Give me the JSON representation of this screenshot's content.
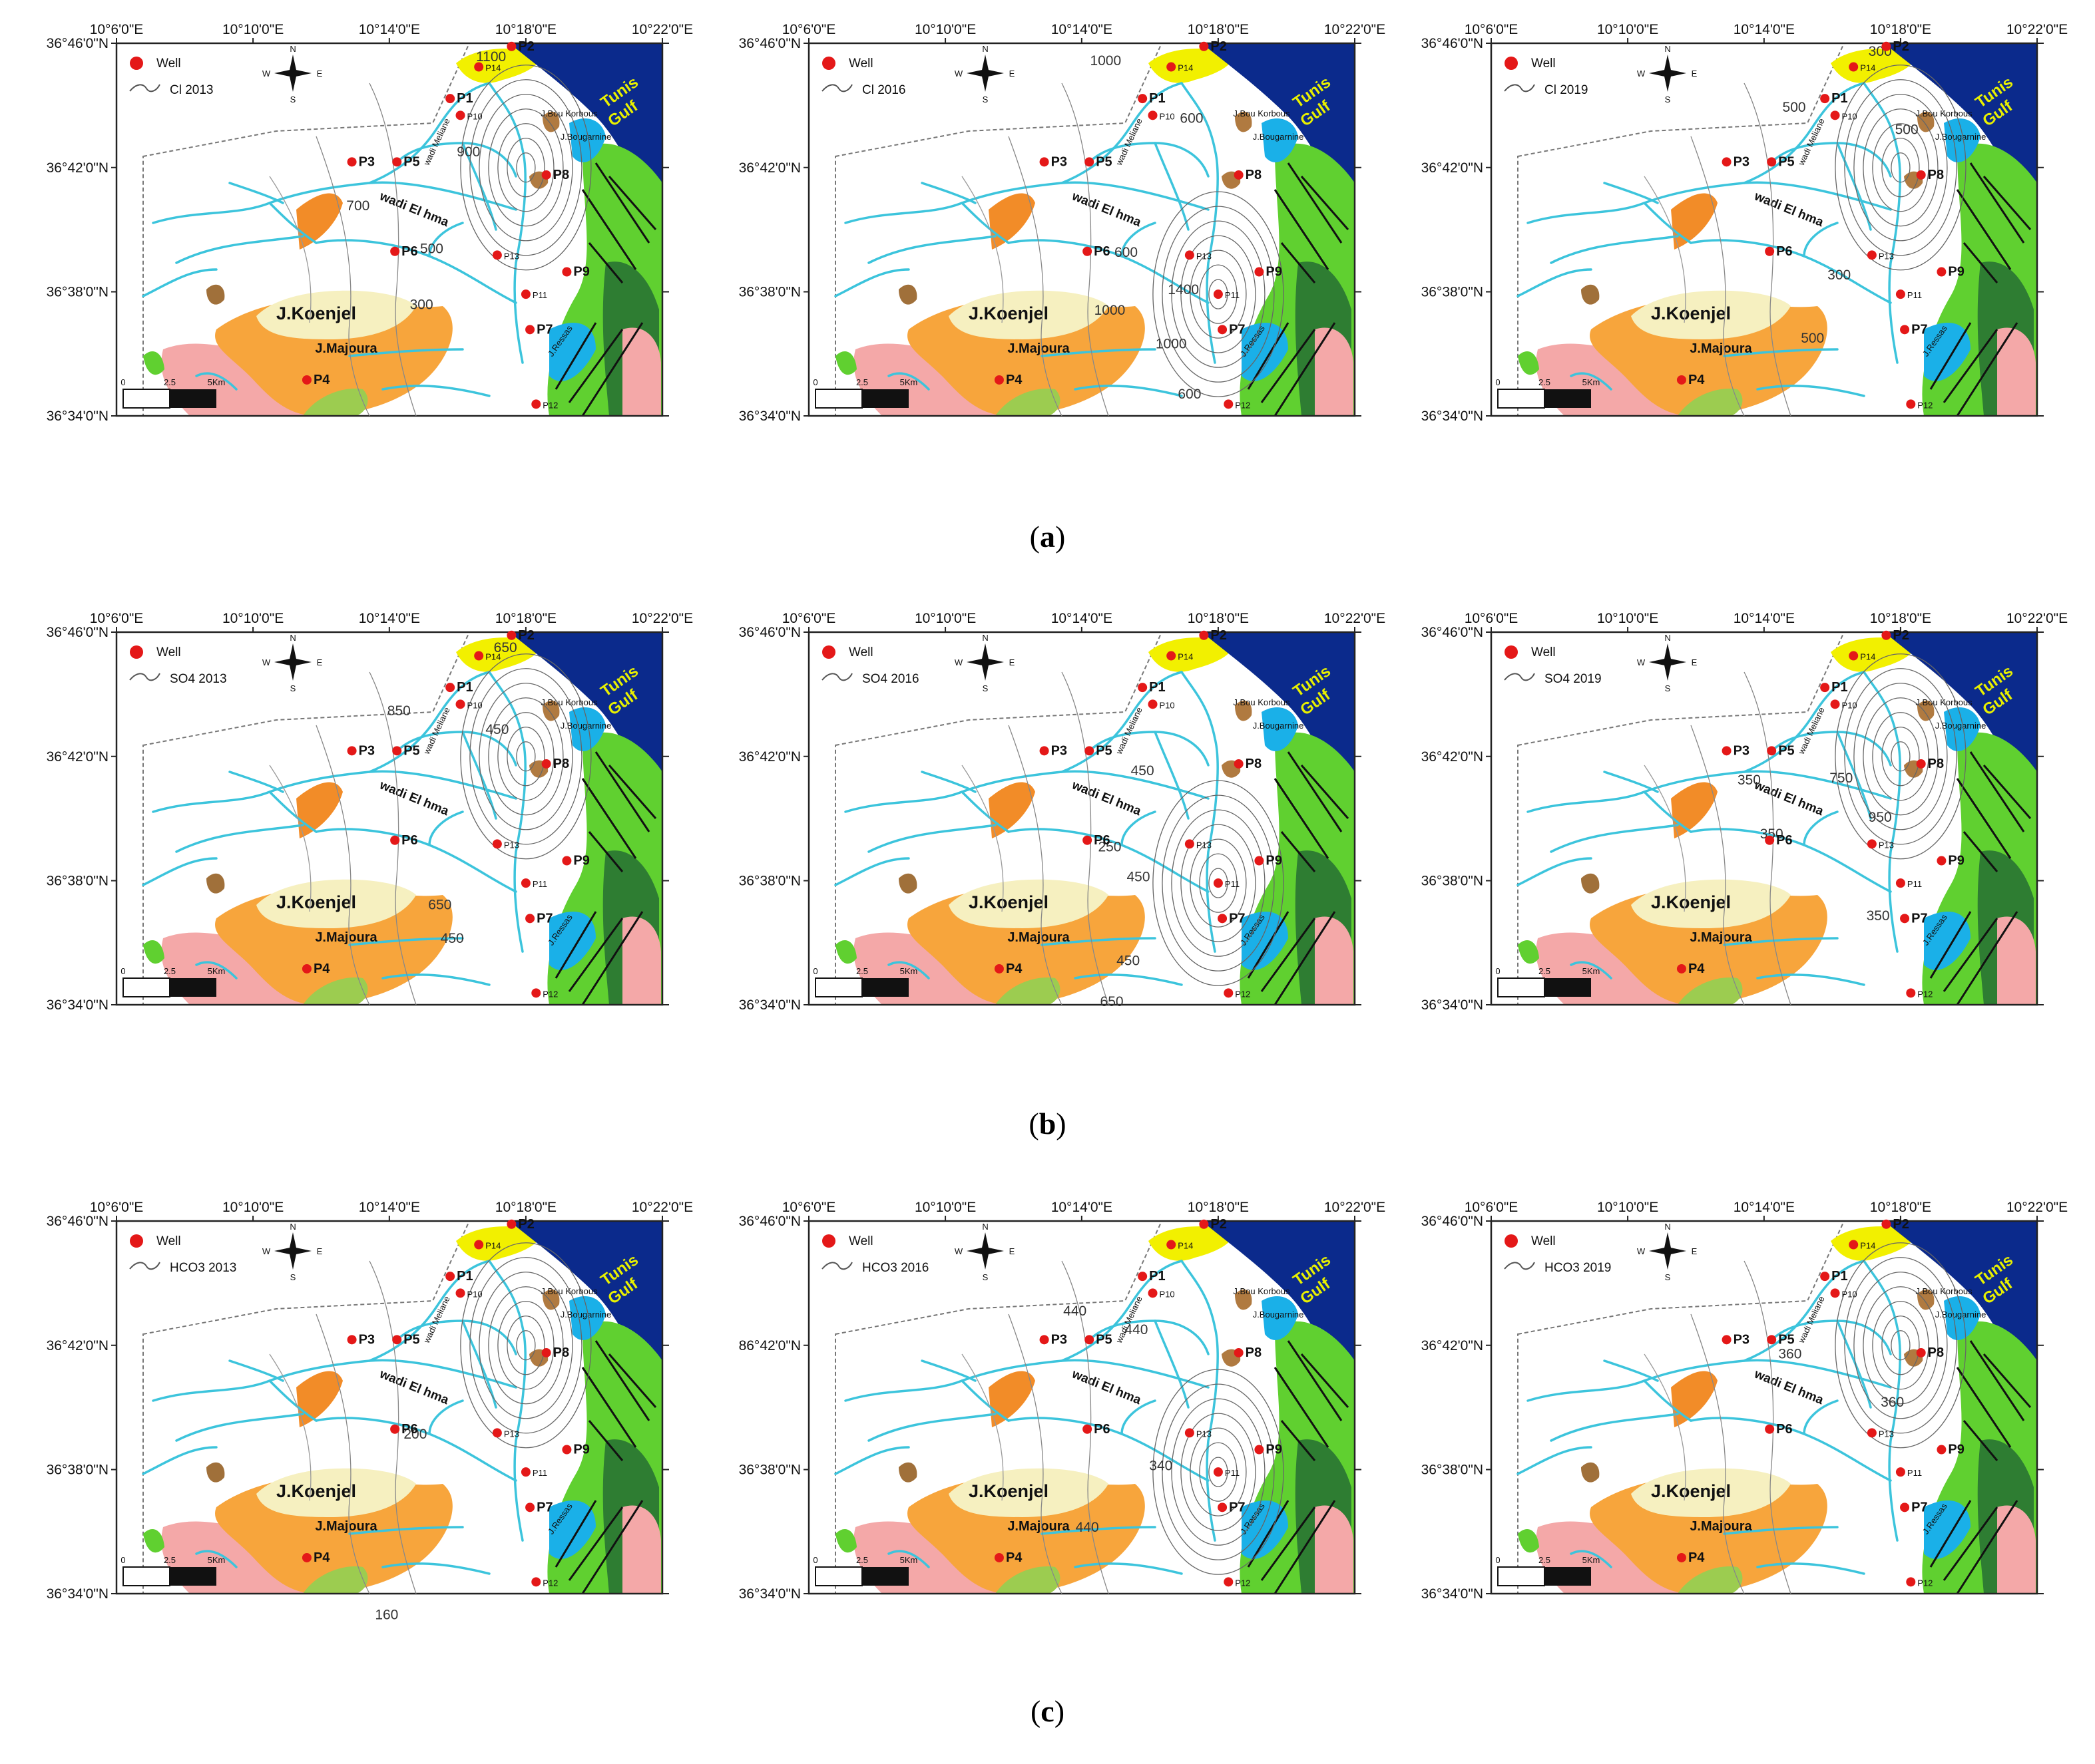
{
  "colors": {
    "gulf": "#0b2a8c",
    "river": "#3cc4dc",
    "koenjel": "#f6f0c0",
    "majoura": "#f7a53c",
    "pink": "#f4a8a8",
    "yellow": "#f2f000",
    "blue_formation": "#1ab0e8",
    "green": "#60d030",
    "dark_green": "#2e7d32",
    "brown": "#b07a40",
    "well": "#e41818"
  },
  "axes": {
    "lon_labels": [
      "10°6'0\"E",
      "10°10'0\"E",
      "10°14'0\"E",
      "10°18'0\"E",
      "10°22'0\"E"
    ],
    "lat_labels": [
      "36°46'0\"N",
      "36°42'0\"N",
      "36°38'0\"N",
      "36°34'0\"N"
    ],
    "lat_label_alt": "86°42'0\"N"
  },
  "map_labels": {
    "well": "Well",
    "gulf_line1": "Tunis",
    "gulf_line2": "Gulf",
    "koenjel": "J.Koenjel",
    "majoura": "J.Majoura",
    "wadi_hma": "wadi El hma",
    "wadi_meliane": "wadi Meliane",
    "ressas": "J.Ressas",
    "bougarnine": "J.Bougarnine",
    "bou_korbous": "J.Bou Korbous",
    "scale_0": "0",
    "scale_mid": "2.5",
    "scale_end": "5Km"
  },
  "wells": [
    {
      "id": "P1",
      "lon": 10.263,
      "lat": 36.737
    },
    {
      "id": "P2",
      "lon": 10.293,
      "lat": 36.765
    },
    {
      "id": "P3",
      "lon": 10.215,
      "lat": 36.703
    },
    {
      "id": "P4",
      "lon": 10.193,
      "lat": 36.586
    },
    {
      "id": "P5",
      "lon": 10.237,
      "lat": 36.703
    },
    {
      "id": "P6",
      "lon": 10.236,
      "lat": 36.655
    },
    {
      "id": "P7",
      "lon": 10.302,
      "lat": 36.613
    },
    {
      "id": "P8",
      "lon": 10.31,
      "lat": 36.696
    },
    {
      "id": "P9",
      "lon": 10.32,
      "lat": 36.644
    },
    {
      "id": "P10",
      "lon": 10.268,
      "lat": 36.728
    },
    {
      "id": "P11",
      "lon": 10.3,
      "lat": 36.632
    },
    {
      "id": "P12",
      "lon": 10.305,
      "lat": 36.573
    },
    {
      "id": "P13",
      "lon": 10.286,
      "lat": 36.653
    },
    {
      "id": "P14",
      "lon": 10.277,
      "lat": 36.754
    }
  ],
  "captions": {
    "a": {
      "open": "(",
      "letter": "a",
      "close": ")"
    },
    "b": {
      "open": "(",
      "letter": "b",
      "close": ")"
    },
    "c": {
      "open": "(",
      "letter": "c",
      "close": ")"
    }
  },
  "panels": [
    {
      "legend": "Cl  2013",
      "contours": [
        {
          "text": "1100",
          "lon": 10.283,
          "lat": 36.757
        },
        {
          "text": "900",
          "lon": 10.272,
          "lat": 36.706
        },
        {
          "text": "700",
          "lon": 10.218,
          "lat": 36.677
        },
        {
          "text": "500",
          "lon": 10.254,
          "lat": 36.654
        },
        {
          "text": "300",
          "lon": 10.249,
          "lat": 36.624
        }
      ]
    },
    {
      "legend": "Cl  2016",
      "contours": [
        {
          "text": "1000",
          "lon": 10.245,
          "lat": 36.755
        },
        {
          "text": "600",
          "lon": 10.287,
          "lat": 36.724
        },
        {
          "text": "600",
          "lon": 10.255,
          "lat": 36.652
        },
        {
          "text": "1000",
          "lon": 10.247,
          "lat": 36.621
        },
        {
          "text": "1400",
          "lon": 10.283,
          "lat": 36.632
        },
        {
          "text": "1000",
          "lon": 10.277,
          "lat": 36.603
        },
        {
          "text": "600",
          "lon": 10.286,
          "lat": 36.576
        }
      ]
    },
    {
      "legend": "Cl  2019",
      "contours": [
        {
          "text": "300",
          "lon": 10.29,
          "lat": 36.76
        },
        {
          "text": "500",
          "lon": 10.248,
          "lat": 36.73
        },
        {
          "text": "500",
          "lon": 10.303,
          "lat": 36.718
        },
        {
          "text": "300",
          "lon": 10.27,
          "lat": 36.64
        },
        {
          "text": "500",
          "lon": 10.257,
          "lat": 36.606
        }
      ]
    },
    {
      "legend": "SO4  2013",
      "contours": [
        {
          "text": "650",
          "lon": 10.29,
          "lat": 36.756
        },
        {
          "text": "850",
          "lon": 10.238,
          "lat": 36.722
        },
        {
          "text": "450",
          "lon": 10.286,
          "lat": 36.712
        },
        {
          "text": "650",
          "lon": 10.258,
          "lat": 36.618
        },
        {
          "text": "450",
          "lon": 10.264,
          "lat": 36.6
        }
      ]
    },
    {
      "legend": "SO4 2016",
      "contours": [
        {
          "text": "450",
          "lon": 10.263,
          "lat": 36.69
        },
        {
          "text": "250",
          "lon": 10.247,
          "lat": 36.649
        },
        {
          "text": "450",
          "lon": 10.261,
          "lat": 36.633
        },
        {
          "text": "450",
          "lon": 10.256,
          "lat": 36.588
        },
        {
          "text": "650",
          "lon": 10.248,
          "lat": 36.566
        }
      ]
    },
    {
      "legend": "SO4  2019",
      "contours": [
        {
          "text": "350",
          "lon": 10.226,
          "lat": 36.685
        },
        {
          "text": "750",
          "lon": 10.271,
          "lat": 36.686
        },
        {
          "text": "950",
          "lon": 10.29,
          "lat": 36.665
        },
        {
          "text": "350",
          "lon": 10.237,
          "lat": 36.656
        },
        {
          "text": "350",
          "lon": 10.289,
          "lat": 36.612
        }
      ]
    },
    {
      "legend": "HCO3  2013",
      "contours": [
        {
          "text": "200",
          "lon": 10.246,
          "lat": 36.65
        },
        {
          "text": "160",
          "lon": 10.232,
          "lat": 36.553
        }
      ]
    },
    {
      "legend": "HCO3  2016",
      "contours": [
        {
          "text": "440",
          "lon": 10.23,
          "lat": 36.716
        },
        {
          "text": "440",
          "lon": 10.26,
          "lat": 36.706
        },
        {
          "text": "340",
          "lon": 10.272,
          "lat": 36.633
        },
        {
          "text": "440",
          "lon": 10.236,
          "lat": 36.6
        }
      ]
    },
    {
      "legend": "HCO3  2019",
      "contours": [
        {
          "text": "360",
          "lon": 10.246,
          "lat": 36.693
        },
        {
          "text": "360",
          "lon": 10.296,
          "lat": 36.667
        }
      ]
    }
  ]
}
